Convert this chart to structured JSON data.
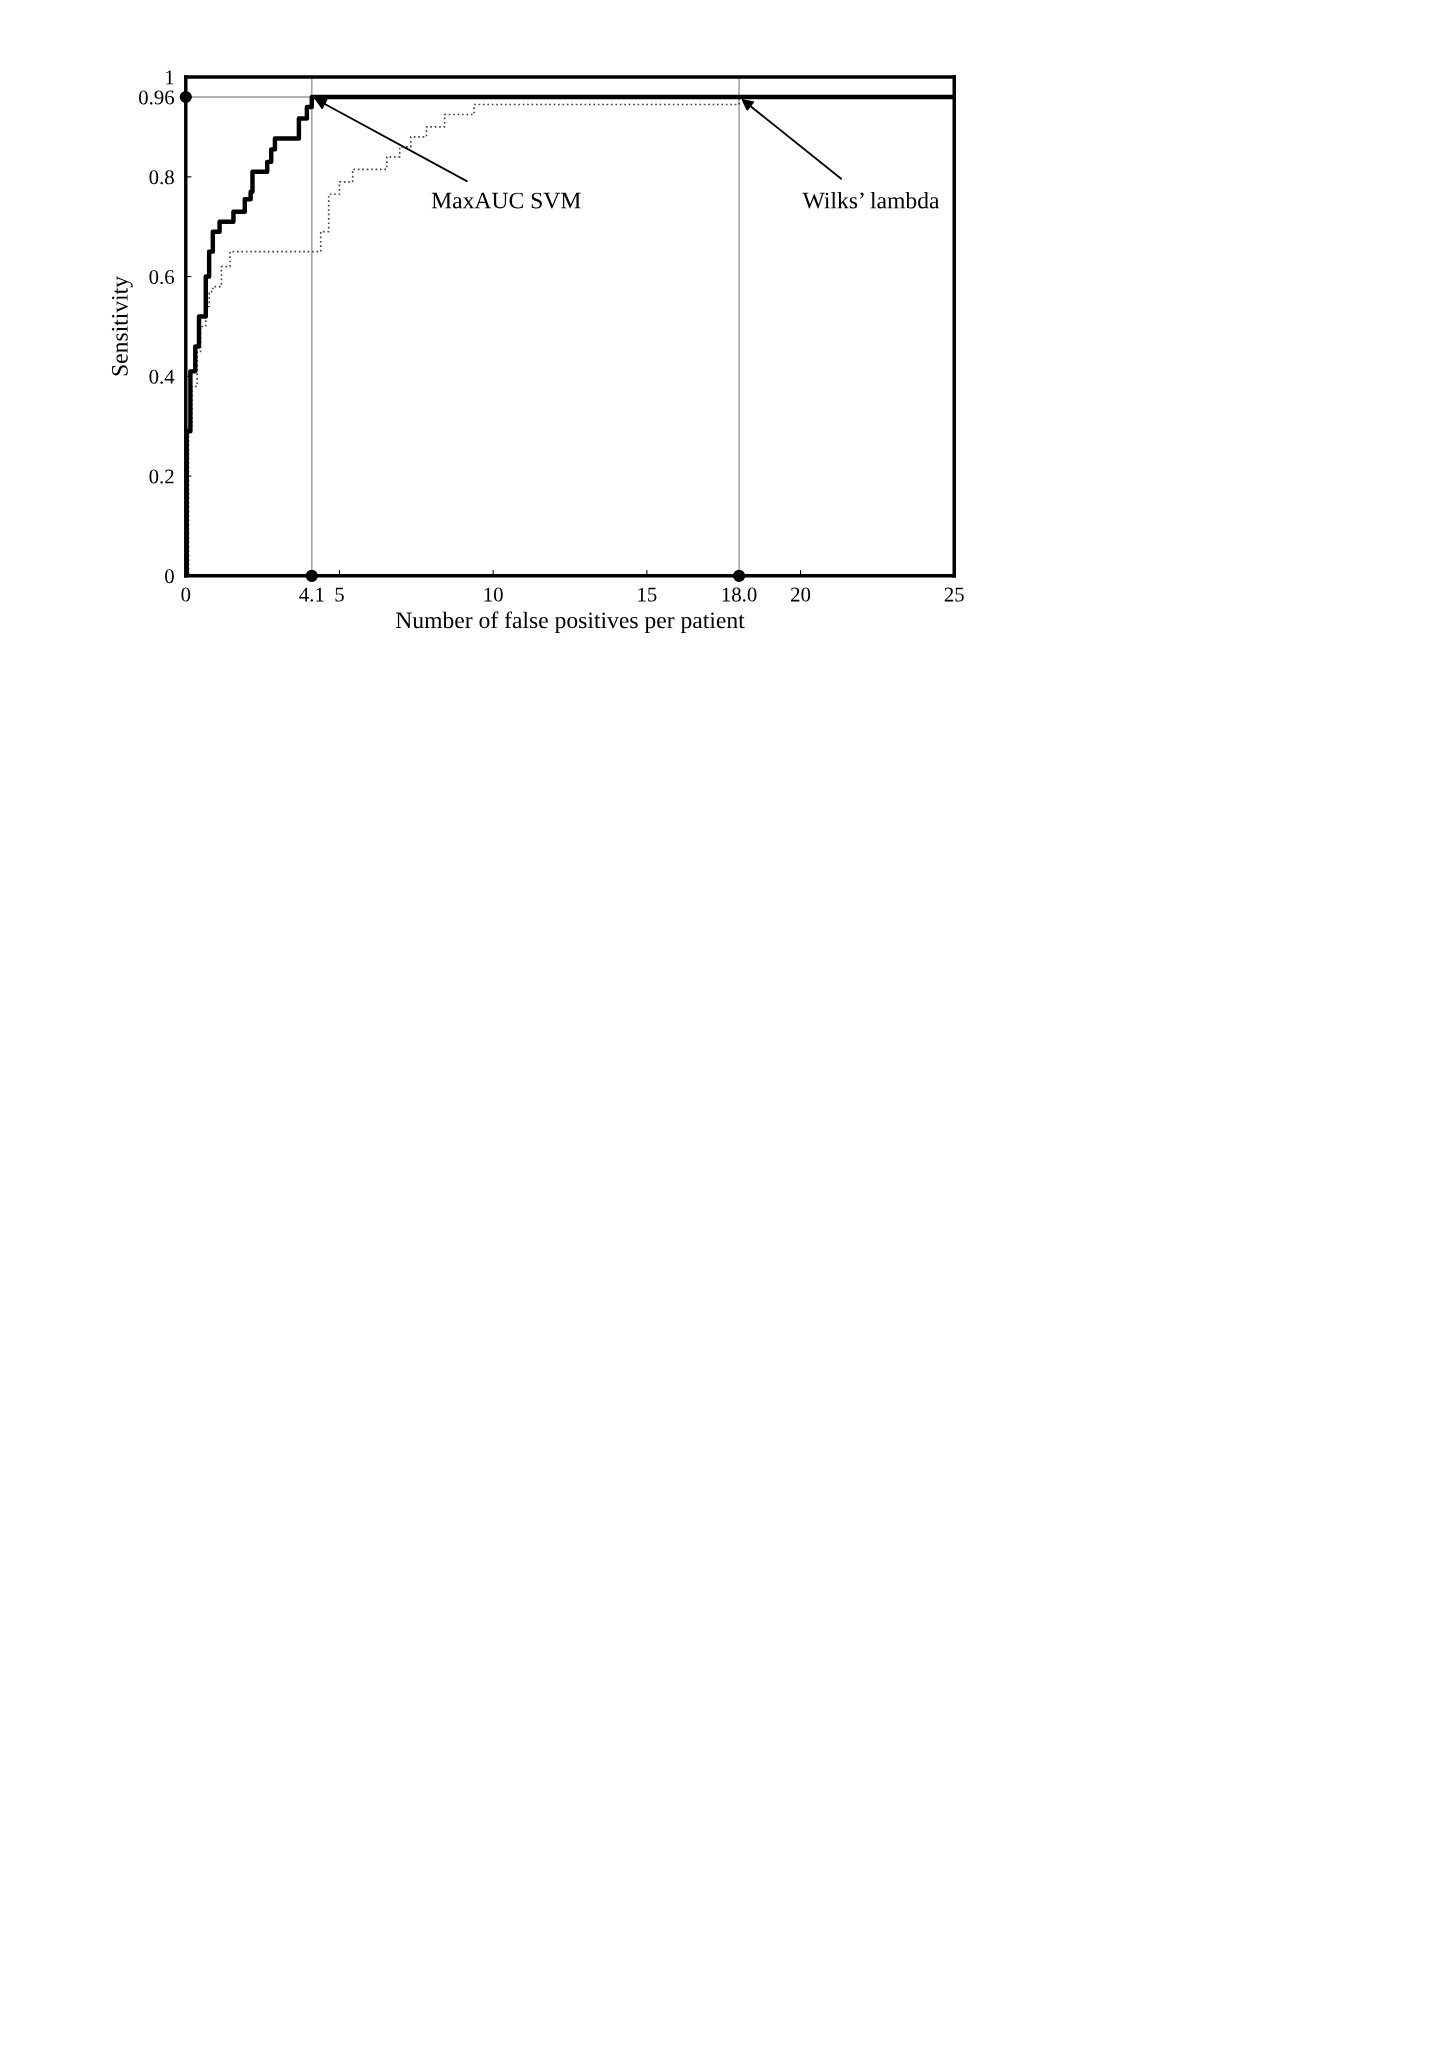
{
  "chart_data": {
    "type": "step",
    "xlabel": "Number of false positives per patient",
    "ylabel": "Sensitivity",
    "series": [
      {
        "color": "#000000",
        "line_style": "solid",
        "x": [
          0,
          0.03,
          0.15,
          0.31,
          0.43,
          0.65,
          0.76,
          0.88,
          1.1,
          1.55,
          1.92,
          2.11,
          2.17,
          2.65,
          2.78,
          2.9,
          3.68,
          3.94,
          4.1,
          25
        ],
        "values": [
          0,
          0.29,
          0.41,
          0.46,
          0.52,
          0.6,
          0.65,
          0.69,
          0.71,
          0.73,
          0.755,
          0.77,
          0.81,
          0.83,
          0.855,
          0.877,
          0.917,
          0.94,
          0.96,
          0.96
        ]
      },
      {
        "color": "#444444",
        "line_style": "dotted",
        "x": [
          0,
          0.09,
          0.2,
          0.37,
          0.48,
          0.65,
          0.76,
          0.88,
          1.16,
          1.44,
          4.39,
          4.65,
          5.0,
          5.43,
          6.54,
          6.96,
          7.32,
          7.83,
          8.42,
          9.38,
          18.0,
          25
        ],
        "values": [
          0,
          0.3,
          0.38,
          0.45,
          0.5,
          0.54,
          0.57,
          0.58,
          0.62,
          0.65,
          0.69,
          0.765,
          0.79,
          0.815,
          0.84,
          0.86,
          0.88,
          0.9,
          0.925,
          0.945,
          0.96,
          0.96
        ]
      },
      {
        "type": "scatter",
        "color": "#000000",
        "marker": "circle",
        "x": [
          0,
          4.1,
          18.0
        ],
        "values": [
          0.96,
          0,
          0
        ]
      }
    ],
    "xlim": [
      0,
      25
    ],
    "ylim": [
      0,
      1
    ],
    "xticks": [
      0,
      {
        "value": 4.1,
        "label": "4.1"
      },
      5,
      10,
      15,
      {
        "value": 18.0,
        "label": "18.0"
      },
      20,
      25
    ],
    "yticks": [
      0,
      0.2,
      0.4,
      0.6,
      0.8,
      0.96,
      1
    ],
    "ref_lines": [
      {
        "axis": "x",
        "value": 4.1,
        "color": "#999999"
      },
      {
        "axis": "x",
        "value": 18.0,
        "color": "#999999"
      },
      {
        "axis": "y",
        "value": 0.96,
        "color": "#999999"
      }
    ],
    "annotations": [
      {
        "text": "MaxAUC SVM",
        "x": 4.1,
        "y": 0.96
      },
      {
        "text": "Wilks’ lambda",
        "x": 18.0,
        "y": 0.96
      }
    ],
    "grid": false,
    "legend": false
  }
}
